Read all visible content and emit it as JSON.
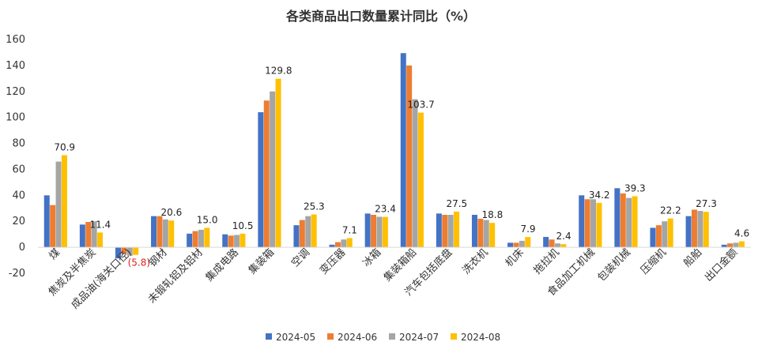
{
  "chart_data": {
    "type": "bar",
    "title": "各类商品出口数量累计同比（%）",
    "xlabel": "",
    "ylabel": "",
    "ylim": [
      -20,
      160
    ],
    "yticks": [
      -20,
      0,
      20,
      40,
      60,
      80,
      100,
      120,
      140,
      160
    ],
    "categories": [
      "煤",
      "焦炭及半焦炭",
      "成品油(海关口径)",
      "钢材",
      "未锻轧铝及铝材",
      "集成电路",
      "集装箱",
      "空调",
      "变压器",
      "冰箱",
      "集装箱船",
      "汽车包括底盘",
      "洗衣机",
      "机床",
      "拖拉机",
      "食品加工机械",
      "包装机械",
      "压缩机",
      "船舶",
      "出口金额"
    ],
    "series": [
      {
        "name": "2024-05",
        "color": "#4472C4",
        "values": [
          40,
          17.5,
          -8.5,
          24,
          10.5,
          10,
          104,
          17,
          2,
          26,
          149.5,
          26,
          25,
          3.5,
          8,
          40,
          45.5,
          15,
          24,
          2
        ]
      },
      {
        "name": "2024-06",
        "color": "#ED7D31",
        "values": [
          32.5,
          19.5,
          -5,
          24,
          12.5,
          9,
          113,
          21,
          4,
          25,
          140,
          25,
          22,
          3.5,
          6,
          37,
          41.5,
          17,
          29,
          3
        ]
      },
      {
        "name": "2024-07",
        "color": "#A5A5A5",
        "values": [
          66,
          20,
          -6.5,
          21.5,
          13.5,
          9.5,
          120,
          24,
          6,
          23.5,
          114,
          25,
          21,
          5,
          3,
          37,
          38,
          20,
          28,
          3.5
        ]
      },
      {
        "name": "2024-08",
        "color": "#FFC000",
        "values": [
          70.9,
          11.4,
          -5.8,
          20.6,
          15.0,
          10.5,
          129.8,
          25.3,
          7.1,
          23.4,
          103.7,
          27.5,
          18.8,
          7.9,
          2.4,
          34.2,
          39.3,
          22.2,
          27.3,
          4.6
        ]
      }
    ],
    "data_labels": [
      "70.9",
      "11.4",
      "(5.8)",
      "20.6",
      "15.0",
      "10.5",
      "129.8",
      "25.3",
      "7.1",
      "23.4",
      "103.7",
      "27.5",
      "18.8",
      "7.9",
      "2.4",
      "34.2",
      "39.3",
      "22.2",
      "27.3",
      "4.6"
    ],
    "data_label_series": "2024-08",
    "legend_position": "bottom",
    "grid": false
  }
}
